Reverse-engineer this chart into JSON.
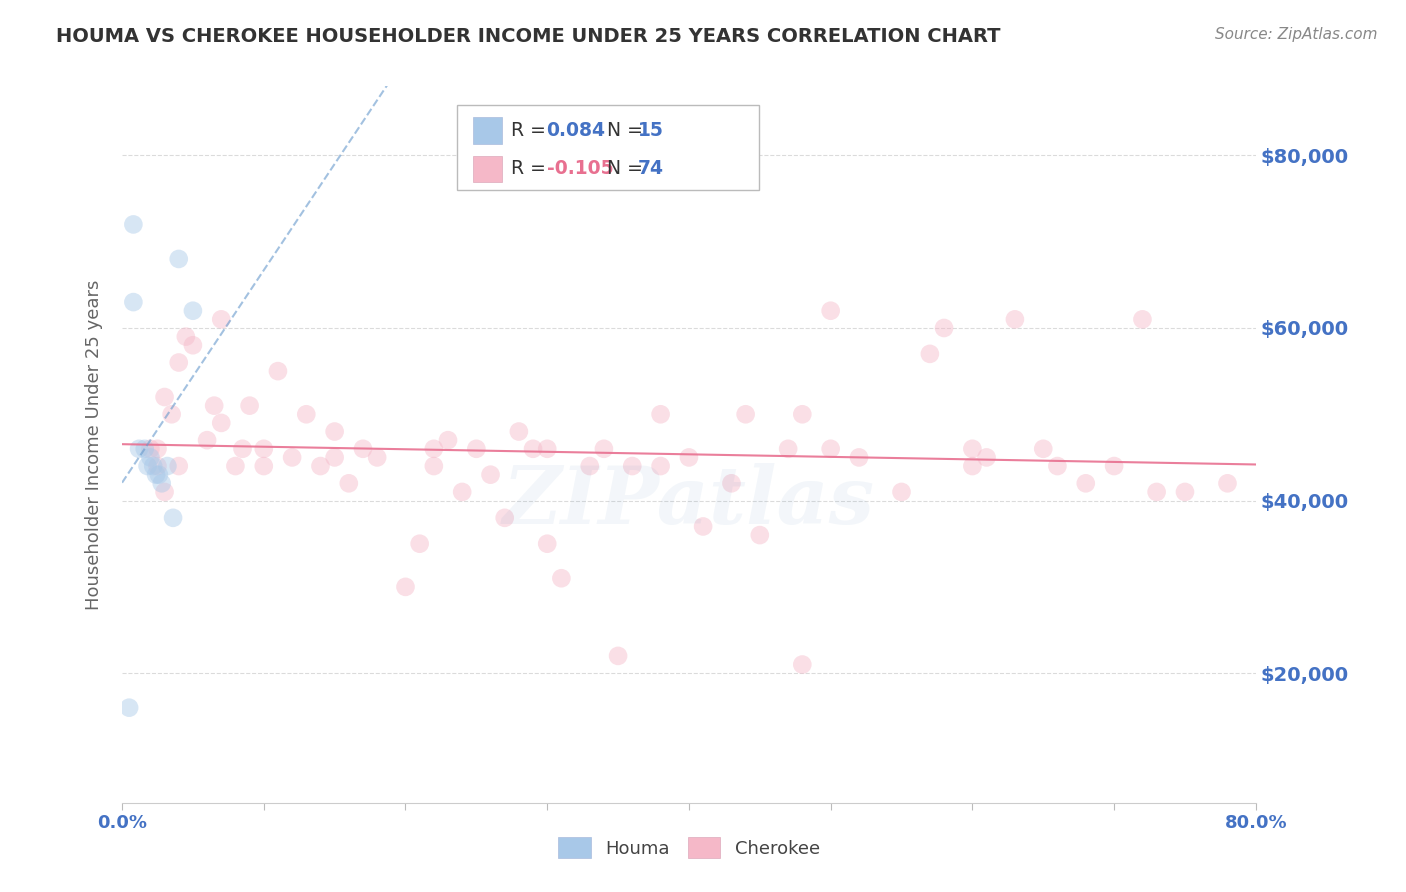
{
  "title": "HOUMA VS CHEROKEE HOUSEHOLDER INCOME UNDER 25 YEARS CORRELATION CHART",
  "source": "Source: ZipAtlas.com",
  "ylabel": "Householder Income Under 25 years",
  "houma_color": "#a8c8e8",
  "cherokee_color": "#f5b8c8",
  "houma_line_color": "#6699cc",
  "cherokee_line_color": "#e87090",
  "watermark": "ZIPatlas",
  "ylim": [
    5000,
    88000
  ],
  "xlim": [
    0.0,
    0.8
  ],
  "yticks": [
    20000,
    40000,
    60000,
    80000
  ],
  "ytick_labels": [
    "$20,000",
    "$40,000",
    "$60,000",
    "$80,000"
  ],
  "xticks": [
    0.0,
    0.1,
    0.2,
    0.3,
    0.4,
    0.5,
    0.6,
    0.7,
    0.8
  ],
  "xtick_labels": [
    "0.0%",
    "",
    "",
    "",
    "",
    "",
    "",
    "",
    "80.0%"
  ],
  "background_color": "#ffffff",
  "grid_color": "#d8d8d8",
  "title_color": "#333333",
  "source_color": "#888888",
  "right_yaxis_color": "#4472C4",
  "marker_size": 180,
  "marker_alpha": 0.45,
  "houma_x": [
    0.005,
    0.008,
    0.012,
    0.016,
    0.018,
    0.02,
    0.022,
    0.024,
    0.026,
    0.028,
    0.032,
    0.036,
    0.04,
    0.05,
    0.008
  ],
  "houma_y": [
    16000,
    72000,
    46000,
    46000,
    44000,
    45000,
    44000,
    43000,
    43000,
    42000,
    44000,
    38000,
    68000,
    62000,
    63000
  ],
  "cherokee_x": [
    0.02,
    0.025,
    0.03,
    0.035,
    0.04,
    0.045,
    0.05,
    0.06,
    0.065,
    0.07,
    0.08,
    0.085,
    0.09,
    0.1,
    0.11,
    0.12,
    0.13,
    0.14,
    0.15,
    0.16,
    0.17,
    0.18,
    0.2,
    0.21,
    0.22,
    0.23,
    0.24,
    0.25,
    0.26,
    0.27,
    0.28,
    0.29,
    0.3,
    0.31,
    0.33,
    0.34,
    0.35,
    0.36,
    0.38,
    0.4,
    0.41,
    0.43,
    0.44,
    0.45,
    0.47,
    0.48,
    0.5,
    0.52,
    0.55,
    0.57,
    0.58,
    0.6,
    0.61,
    0.63,
    0.65,
    0.66,
    0.68,
    0.7,
    0.72,
    0.73,
    0.75,
    0.78,
    0.025,
    0.03,
    0.04,
    0.07,
    0.1,
    0.15,
    0.22,
    0.3,
    0.38,
    0.48,
    0.5,
    0.6
  ],
  "cherokee_y": [
    46000,
    44000,
    52000,
    50000,
    56000,
    59000,
    58000,
    47000,
    51000,
    49000,
    44000,
    46000,
    51000,
    46000,
    55000,
    45000,
    50000,
    44000,
    48000,
    42000,
    46000,
    45000,
    30000,
    35000,
    44000,
    47000,
    41000,
    46000,
    43000,
    38000,
    48000,
    46000,
    46000,
    31000,
    44000,
    46000,
    22000,
    44000,
    44000,
    45000,
    37000,
    42000,
    50000,
    36000,
    46000,
    50000,
    62000,
    45000,
    41000,
    57000,
    60000,
    44000,
    45000,
    61000,
    46000,
    44000,
    42000,
    44000,
    61000,
    41000,
    41000,
    42000,
    46000,
    41000,
    44000,
    61000,
    44000,
    45000,
    46000,
    35000,
    50000,
    21000,
    46000,
    46000
  ],
  "legend_R_color": "#4472C4",
  "legend_N_color": "#4472C4",
  "legend_cherokee_R_color": "#e87090"
}
